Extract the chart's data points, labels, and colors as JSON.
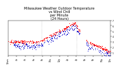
{
  "title_line1": "Milwaukee Weather Outdoor Temperature",
  "title_line2": "vs Wind Chill",
  "title_line3": "per Minute",
  "title_line4": "(24 Hours)",
  "bg_color": "#ffffff",
  "temp_color": "#ff0000",
  "wind_color": "#0000cc",
  "title_fontsize": 3.5,
  "tick_fontsize": 2.2,
  "vline_color": "#888888",
  "vline_positions": [
    0.33,
    0.67
  ],
  "n_xticks": 13,
  "xlabels": [
    "12am",
    "2a",
    "4a",
    "6a",
    "8a",
    "10a",
    "12p",
    "2p",
    "4p",
    "6p",
    "8p",
    "10p",
    "12a"
  ],
  "ylim": [
    0.5,
    7.0
  ],
  "yticks": [
    1,
    2,
    3,
    4,
    5,
    6,
    7
  ]
}
